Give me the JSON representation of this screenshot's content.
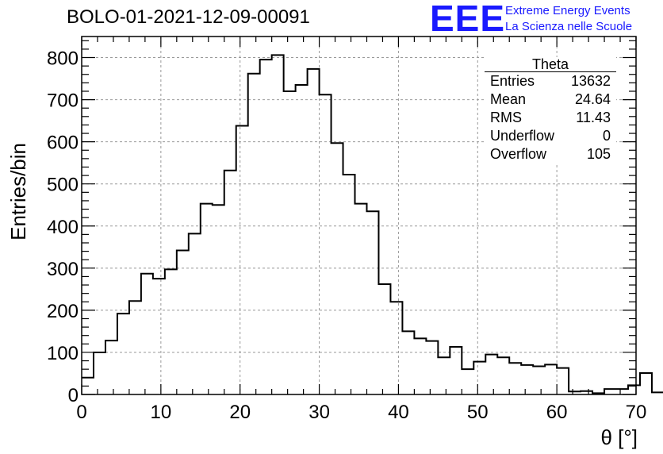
{
  "header": {
    "title": "BOLO-01-2021-12-09-00091",
    "logo": "EEE",
    "logo_line1": "Extreme Energy Events",
    "logo_line2": "La Scienza nelle Scuole"
  },
  "stats": {
    "name": "Theta",
    "rows": [
      {
        "label": "Entries",
        "value": "13632"
      },
      {
        "label": "Mean",
        "value": "24.64"
      },
      {
        "label": "RMS",
        "value": "11.43"
      },
      {
        "label": "Underflow",
        "value": "0"
      },
      {
        "label": "Overflow",
        "value": "105"
      }
    ]
  },
  "colors": {
    "line": "#000000",
    "grid": "#999999",
    "logo": "#1a1aff"
  },
  "chart_data": {
    "type": "histogram",
    "xlabel": "θ [°]",
    "ylabel": "Entries/bin",
    "xlim": [
      0,
      70
    ],
    "ylim": [
      0,
      850
    ],
    "grid": true,
    "xticks": [
      0,
      10,
      20,
      30,
      40,
      50,
      60,
      70
    ],
    "yticks": [
      0,
      100,
      200,
      300,
      400,
      500,
      600,
      700,
      800
    ],
    "bin_width": 1.5,
    "bin_edges_start": 0,
    "values": [
      40,
      100,
      128,
      192,
      222,
      287,
      275,
      297,
      342,
      382,
      453,
      450,
      532,
      638,
      762,
      795,
      806,
      720,
      735,
      773,
      712,
      597,
      522,
      453,
      435,
      262,
      220,
      150,
      133,
      127,
      88,
      113,
      60,
      78,
      95,
      88,
      75,
      70,
      67,
      71,
      63,
      7,
      8,
      3,
      13,
      13,
      22,
      51,
      5
    ]
  }
}
